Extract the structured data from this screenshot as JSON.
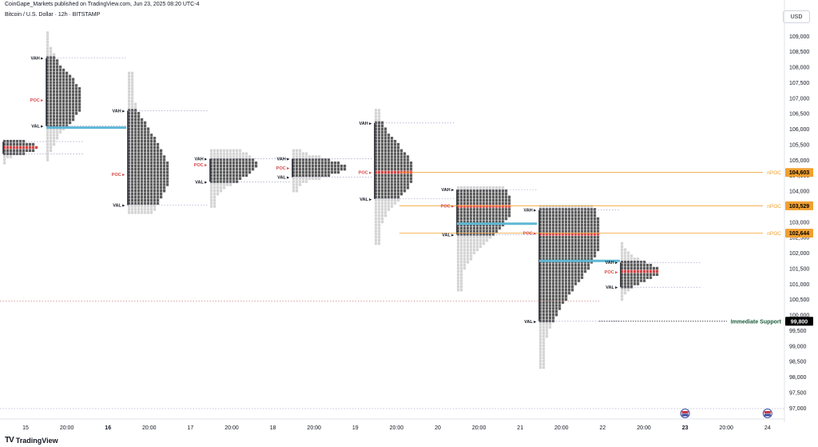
{
  "header": {
    "publish_line": "CoinGape_Markets published on TradingView.com, Jun 23, 2025 08:20 UTC-4",
    "symbol_line": "Bitcoin / U.S. Dollar · 12h · BITSTAMP",
    "currency": "USD"
  },
  "footer": {
    "logo_text": "TradingView"
  },
  "colors": {
    "profile_dark": "#5c5c5c",
    "profile_light": "#d4d4d4",
    "poc": "#d64545",
    "value_area_line": "#5eb8d6",
    "npoc": "#f0a030",
    "badge_text_dark": "#000000",
    "support_badge": "#000000",
    "dotted_line": "#9090c0"
  },
  "chart_data": {
    "type": "volume-profile",
    "ylim": [
      96800,
      109500
    ],
    "yticks": [
      "109,000",
      "108,500",
      "108,000",
      "107,500",
      "107,000",
      "106,500",
      "106,000",
      "105,500",
      "105,000",
      "104,500",
      "104,000",
      "103,500",
      "103,000",
      "102,500",
      "102,000",
      "101,500",
      "101,000",
      "100,500",
      "100,000",
      "99,500",
      "99,000",
      "98,500",
      "98,000",
      "97,500",
      "97,000"
    ],
    "ytick_values": [
      109000,
      108500,
      108000,
      107500,
      107000,
      106500,
      106000,
      105500,
      105000,
      104500,
      104000,
      103500,
      103000,
      102500,
      102000,
      101500,
      101000,
      100500,
      100000,
      99500,
      99000,
      98500,
      98000,
      97500,
      97000
    ],
    "xticks": [
      "15",
      "20:00",
      "16",
      "20:00",
      "17",
      "20:00",
      "18",
      "20:00",
      "19",
      "20:00",
      "20",
      "20:00",
      "21",
      "20:00",
      "22",
      "20:00",
      "23",
      "20:00",
      "24"
    ],
    "bold_xticks": [
      "16",
      "23"
    ],
    "level_labels": {
      "vah": "VAH",
      "poc": "POC",
      "val": "VAL"
    },
    "profiles": [
      {
        "session": "0",
        "top": 105600,
        "bottom": 104900,
        "vah": 105600,
        "poc": 105400,
        "val": 105200,
        "partial": true
      },
      {
        "session": "1",
        "top": 109100,
        "bottom": 105000,
        "vah": 108300,
        "poc": 106950,
        "val": 106100
      },
      {
        "session": "2",
        "top": 107800,
        "bottom": 103300,
        "vah": 106600,
        "poc": 104550,
        "val": 103550
      },
      {
        "session": "3",
        "top": 105300,
        "bottom": 103500,
        "vah": 105050,
        "poc": 104850,
        "val": 104300
      },
      {
        "session": "4",
        "top": 105300,
        "bottom": 104000,
        "vah": 105050,
        "poc": 104750,
        "val": 104450
      },
      {
        "session": "5",
        "top": 106600,
        "bottom": 102300,
        "vah": 106200,
        "poc": 104603,
        "val": 103750
      },
      {
        "session": "6",
        "top": 104100,
        "bottom": 100800,
        "vah": 104050,
        "poc": 103529,
        "val": 102600
      },
      {
        "session": "7",
        "top": 103500,
        "bottom": 98300,
        "vah": 103400,
        "poc": 102644,
        "val": 99800
      },
      {
        "session": "8",
        "top": 102300,
        "bottom": 100500,
        "vah": 101700,
        "poc": 101400,
        "val": 100900
      }
    ],
    "npoc_levels": [
      {
        "label": "nPOC",
        "value": "104,603",
        "price": 104603
      },
      {
        "label": "nPOC",
        "value": "103,529",
        "price": 103529
      },
      {
        "label": "nPOC",
        "value": "102,644",
        "price": 102644
      }
    ],
    "support": {
      "label": "Immediate Support",
      "value": "99,800",
      "price": 99800
    },
    "event_flags": [
      "23",
      "24"
    ]
  }
}
